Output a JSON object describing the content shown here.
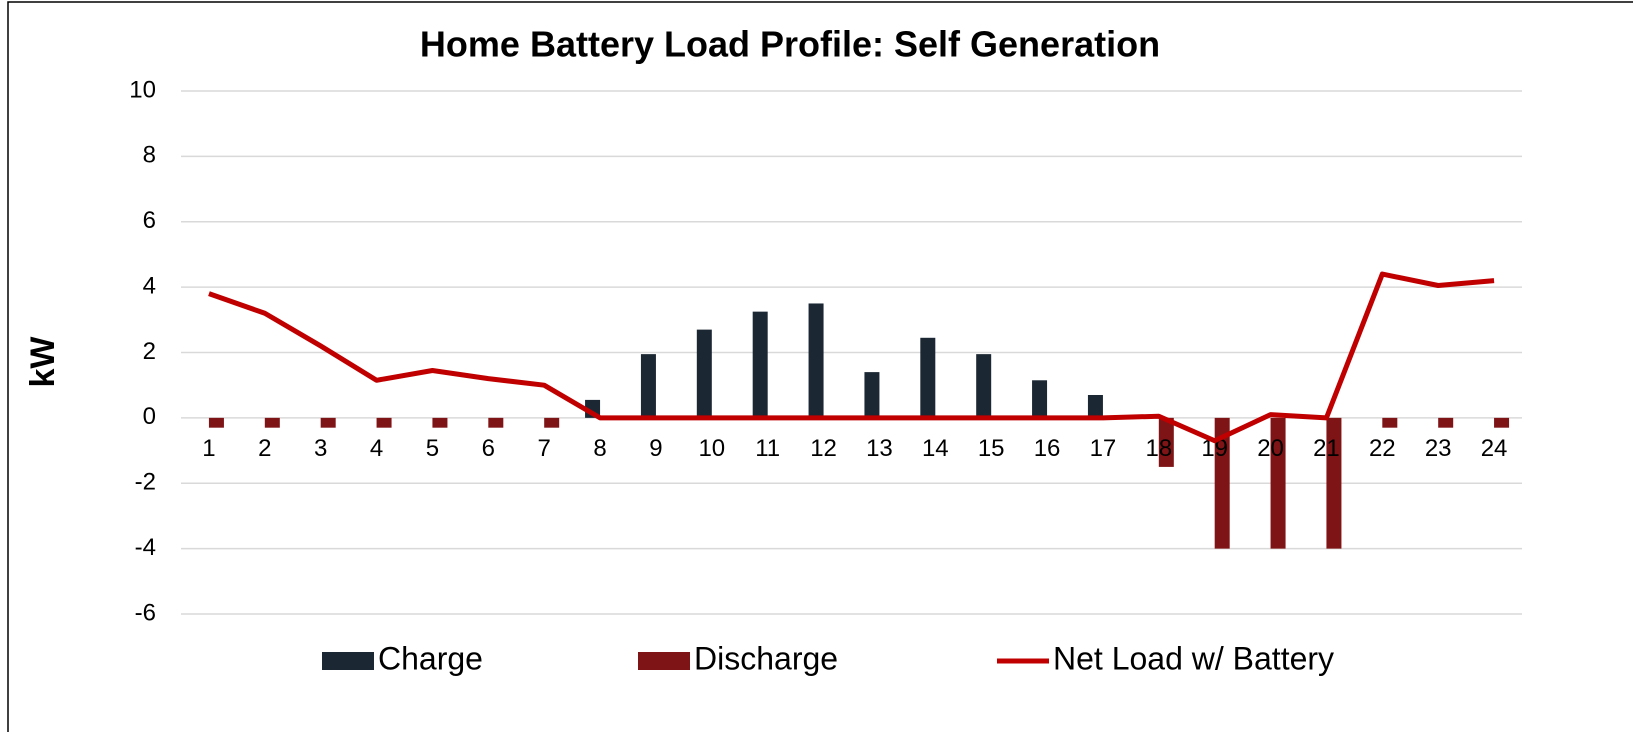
{
  "chart_data": {
    "type": "bar_line",
    "title": "Home Battery Load Profile: Self Generation",
    "y_label": "kW",
    "categories": [
      "1",
      "2",
      "3",
      "4",
      "5",
      "6",
      "7",
      "8",
      "9",
      "10",
      "11",
      "12",
      "13",
      "14",
      "15",
      "16",
      "17",
      "18",
      "19",
      "20",
      "21",
      "22",
      "23",
      "24"
    ],
    "series": [
      {
        "name": "Charge",
        "type": "bar",
        "color": "#1c2734",
        "values": [
          0,
          0,
          0,
          0,
          0,
          0,
          0,
          0.55,
          1.95,
          2.7,
          3.25,
          3.5,
          1.4,
          2.45,
          1.95,
          1.15,
          0.7,
          0,
          0,
          0,
          0,
          0,
          0,
          0
        ]
      },
      {
        "name": "Discharge",
        "type": "bar",
        "color": "#7f1416",
        "values": [
          -0.3,
          -0.3,
          -0.3,
          -0.3,
          -0.3,
          -0.3,
          -0.3,
          0,
          0,
          0,
          0,
          0,
          0,
          0,
          0,
          0,
          0,
          -1.5,
          -4,
          -4,
          -4,
          -0.3,
          -0.3,
          -0.3
        ]
      },
      {
        "name": "Net Load w/ Battery",
        "type": "line",
        "color": "#c00000",
        "values": [
          3.8,
          3.2,
          2.2,
          1.15,
          1.45,
          1.2,
          1.0,
          0,
          0,
          0,
          0,
          0,
          0,
          0,
          0,
          0,
          0,
          0.05,
          -0.7,
          0.1,
          0,
          4.4,
          4.05,
          4.2
        ]
      }
    ],
    "ylim": [
      -6,
      10
    ],
    "yticks": [
      -6,
      -4,
      -2,
      0,
      2,
      4,
      6,
      8,
      10
    ],
    "grid": true,
    "legend": "bottom"
  }
}
